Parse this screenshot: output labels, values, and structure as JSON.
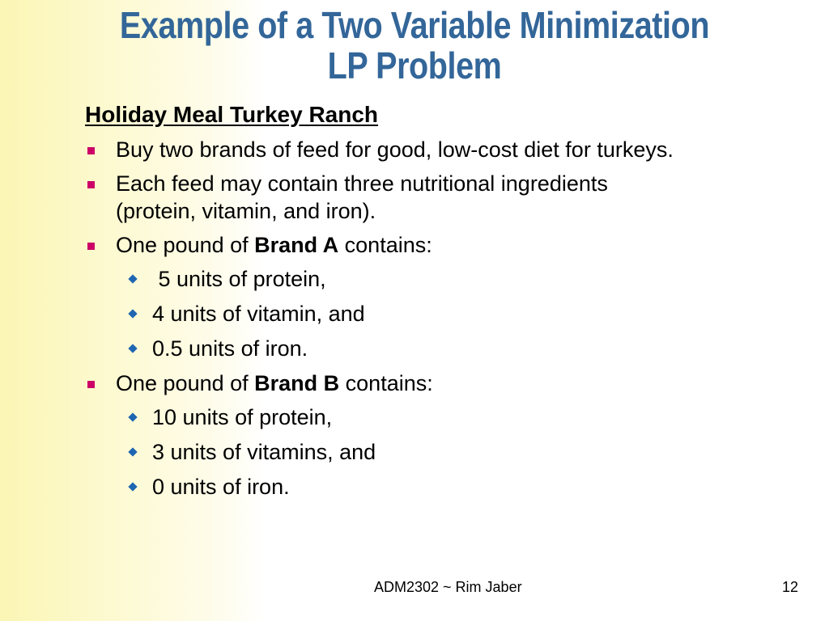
{
  "slide": {
    "title_line1": "Example of a Two Variable Minimization",
    "title_line2": "LP Problem",
    "subtitle": "Holiday Meal Turkey Ranch",
    "bullets": [
      {
        "text": "Buy two brands of feed for good, low-cost diet for turkeys."
      },
      {
        "text": "Each feed may contain three nutritional ingredients (protein, vitamin, and iron)."
      },
      {
        "prefix": "One pound of ",
        "bold": "Brand A",
        "suffix": " contains:",
        "sub": [
          " 5 units of protein,",
          "4 units of vitamin, and",
          "0.5 units of iron."
        ]
      },
      {
        "prefix": "One pound of ",
        "bold": "Brand B",
        "suffix": " contains:",
        "sub": [
          "10 units of protein,",
          "3 units of vitamins, and",
          "0 units of iron."
        ]
      }
    ],
    "footer_center": "ADM2302 ~ Rim Jaber",
    "page_number": "12"
  },
  "colors": {
    "title": "#336699",
    "bullet_square": "#cc0066",
    "bullet_diamond": "#1f66b2",
    "background_gradient": "#fbf6b4"
  }
}
